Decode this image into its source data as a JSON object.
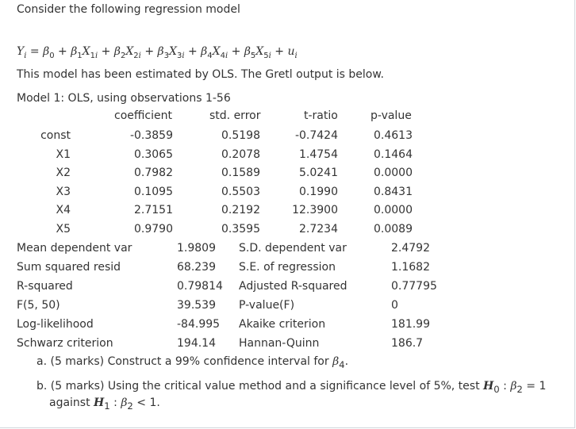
{
  "intro": "Consider the following regression model",
  "estimation_note": "This model has been estimated by OLS. The Gretl output is below.",
  "model_title": "Model 1: OLS, using observations 1-56",
  "headers": {
    "coefficient": "coefficient",
    "std_error": "std. error",
    "t_ratio": "t-ratio",
    "p_value": "p-value"
  },
  "coefficients": [
    {
      "name": "const",
      "coef": "-0.3859",
      "se": "0.5198",
      "t": "-0.7424",
      "p": "0.4613"
    },
    {
      "name": "X1",
      "coef": "0.3065",
      "se": "0.2078",
      "t": "1.4754",
      "p": "0.1464"
    },
    {
      "name": "X2",
      "coef": "0.7982",
      "se": "0.1589",
      "t": "5.0241",
      "p": "0.0000"
    },
    {
      "name": "X3",
      "coef": "0.1095",
      "se": "0.5503",
      "t": "0.1990",
      "p": "0.8431"
    },
    {
      "name": "X4",
      "coef": "2.7151",
      "se": "0.2192",
      "t": "12.3900",
      "p": "0.0000"
    },
    {
      "name": "X5",
      "coef": "0.9790",
      "se": "0.3595",
      "t": "2.7234",
      "p": "0.0089"
    }
  ],
  "stats": [
    {
      "label": "Mean dependent var",
      "value": "1.9809",
      "label2": "S.D. dependent var",
      "value2": "2.4792"
    },
    {
      "label": "Sum squared resid",
      "value": "68.239",
      "label2": "S.E. of regression",
      "value2": "1.1682"
    },
    {
      "label": "R-squared",
      "value": "0.79814",
      "label2": "Adjusted R-squared",
      "value2": "0.77795"
    },
    {
      "label": "F(5, 50)",
      "value": "39.539",
      "label2": "P-value(F)",
      "value2": "0"
    },
    {
      "label": "Log-likelihood",
      "value": "-84.995",
      "label2": "Akaike criterion",
      "value2": "181.99"
    },
    {
      "label": "Schwarz criterion",
      "value": "194.14",
      "label2": "Hannan-Quinn",
      "value2": "186.7"
    }
  ],
  "questions": {
    "a_prefix": "a. (5 marks) Construct a 99% confidence interval for",
    "b_prefix": "b. (5 marks) Using the critical value method and a significance level of 5%, test",
    "b_suffix": "against"
  }
}
